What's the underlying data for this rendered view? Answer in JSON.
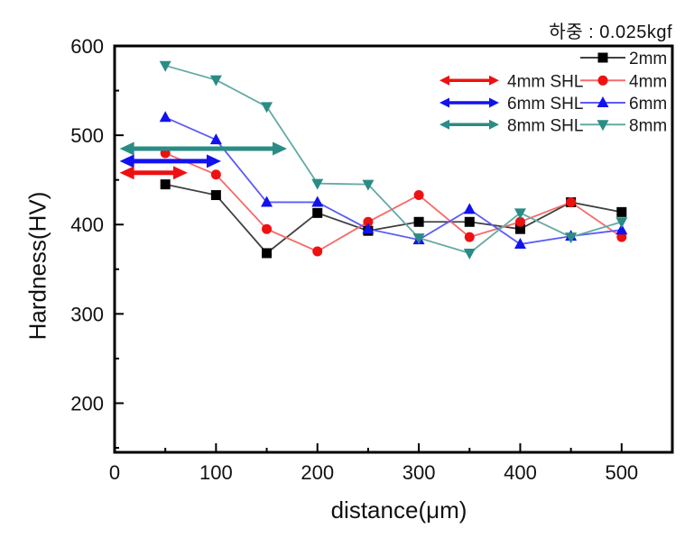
{
  "figure": {
    "load_annotation": "하중 : 0.025kgf"
  },
  "chart_data": {
    "type": "line",
    "title": "하중 : 0.025kgf",
    "xlabel": "distance(μm)",
    "ylabel": "Hardness(HV)",
    "xlim": [
      0,
      550
    ],
    "ylim": [
      145,
      600
    ],
    "x_major_ticks": [
      0,
      100,
      200,
      300,
      400,
      500
    ],
    "x_minor_ticks": [
      50,
      150,
      250,
      350,
      450
    ],
    "y_major_ticks": [
      200,
      300,
      400,
      500,
      600
    ],
    "y_minor_ticks": [
      150,
      250,
      350,
      450,
      550
    ],
    "grid": false,
    "legend_position": "top-right-inside",
    "x": [
      50,
      100,
      150,
      200,
      250,
      300,
      350,
      400,
      450,
      500
    ],
    "series": [
      {
        "name": "2mm",
        "marker": "square",
        "color": "#000000",
        "line_color": "#404040",
        "values": [
          445,
          433,
          368,
          413,
          393,
          403,
          403,
          395,
          425,
          414
        ]
      },
      {
        "name": "4mm",
        "marker": "circle",
        "color": "#ee1111",
        "line_color": "#f56a6a",
        "values": [
          480,
          456,
          395,
          370,
          403,
          433,
          386,
          403,
          425,
          386
        ]
      },
      {
        "name": "6mm",
        "marker": "triangle-up",
        "color": "#1212ee",
        "line_color": "#5b5bf7",
        "values": [
          520,
          495,
          425,
          425,
          395,
          383,
          417,
          378,
          387,
          394
        ]
      },
      {
        "name": "8mm",
        "marker": "triangle-down",
        "color": "#2b8c85",
        "line_color": "#62aaa4",
        "values": [
          578,
          562,
          532,
          446,
          445,
          385,
          368,
          413,
          386,
          403
        ]
      }
    ],
    "shl_arrows": [
      {
        "label": "4mm SHL",
        "color": "#ee1111",
        "x_start_um": 5,
        "x_end_um": 72,
        "hv_level": 458
      },
      {
        "label": "6mm SHL",
        "color": "#1212ee",
        "x_start_um": 5,
        "x_end_um": 105,
        "hv_level": 471
      },
      {
        "label": "8mm SHL",
        "color": "#2b8c85",
        "x_start_um": 5,
        "x_end_um": 170,
        "hv_level": 485
      }
    ]
  }
}
